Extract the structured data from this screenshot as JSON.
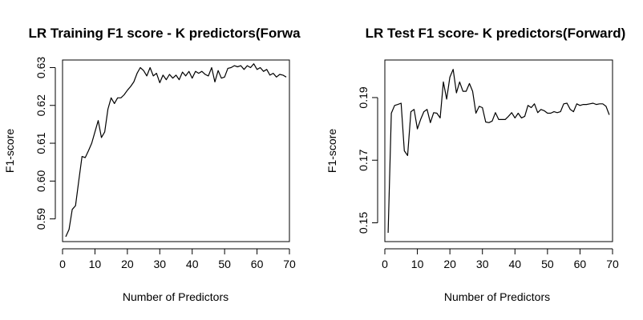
{
  "chart_data": [
    {
      "type": "line",
      "title": "LR Training F1 score - K predictors(Forwa",
      "xlabel": "Number of Predictors",
      "ylabel": "F1-score",
      "xlim": [
        0,
        70
      ],
      "ylim": [
        0.584,
        0.632
      ],
      "xticks": [
        0,
        10,
        20,
        30,
        40,
        50,
        60,
        70
      ],
      "yticks": [
        0.59,
        0.6,
        0.61,
        0.62,
        0.63
      ],
      "ytick_labels": [
        "0.59",
        "0.60",
        "0.61",
        "0.62",
        "0.63"
      ],
      "grid": false,
      "x": [
        1,
        2,
        3,
        4,
        5,
        6,
        7,
        8,
        9,
        10,
        11,
        12,
        13,
        14,
        15,
        16,
        17,
        18,
        19,
        20,
        21,
        22,
        23,
        24,
        25,
        26,
        27,
        28,
        29,
        30,
        31,
        32,
        33,
        34,
        35,
        36,
        37,
        38,
        39,
        40,
        41,
        42,
        43,
        44,
        45,
        46,
        47,
        48,
        49,
        50,
        51,
        52,
        53,
        54,
        55,
        56,
        57,
        58,
        59,
        60,
        61,
        62,
        63,
        64,
        65,
        66,
        67,
        68,
        69
      ],
      "y": [
        0.5853,
        0.5872,
        0.5925,
        0.5935,
        0.6,
        0.6065,
        0.6062,
        0.608,
        0.61,
        0.613,
        0.616,
        0.6115,
        0.613,
        0.619,
        0.622,
        0.6205,
        0.622,
        0.622,
        0.6228,
        0.624,
        0.625,
        0.6262,
        0.6285,
        0.63,
        0.6292,
        0.6278,
        0.63,
        0.6278,
        0.6285,
        0.626,
        0.628,
        0.6268,
        0.6282,
        0.6272,
        0.628,
        0.6268,
        0.6288,
        0.6278,
        0.629,
        0.6272,
        0.629,
        0.6285,
        0.629,
        0.6282,
        0.6278,
        0.63,
        0.6262,
        0.6292,
        0.6272,
        0.6275,
        0.6298,
        0.63,
        0.6305,
        0.6302,
        0.6305,
        0.6295,
        0.6305,
        0.63,
        0.631,
        0.6295,
        0.63,
        0.629,
        0.6295,
        0.628,
        0.6285,
        0.6275,
        0.6282,
        0.628,
        0.6275
      ]
    },
    {
      "type": "line",
      "title": "LR Test F1 score- K predictors(Forward)",
      "xlabel": "Number of Predictors",
      "ylabel": "F1-score",
      "xlim": [
        0,
        70
      ],
      "ylim": [
        0.144,
        0.202
      ],
      "xticks": [
        0,
        10,
        20,
        30,
        40,
        50,
        60,
        70
      ],
      "yticks": [
        0.15,
        0.17,
        0.19
      ],
      "ytick_labels": [
        "0.15",
        "0.17",
        "0.19"
      ],
      "grid": false,
      "x": [
        1,
        2,
        3,
        4,
        5,
        6,
        7,
        8,
        9,
        10,
        11,
        12,
        13,
        14,
        15,
        16,
        17,
        18,
        19,
        20,
        21,
        22,
        23,
        24,
        25,
        26,
        27,
        28,
        29,
        30,
        31,
        32,
        33,
        34,
        35,
        36,
        37,
        38,
        39,
        40,
        41,
        42,
        43,
        44,
        45,
        46,
        47,
        48,
        49,
        50,
        51,
        52,
        53,
        54,
        55,
        56,
        57,
        58,
        59,
        60,
        61,
        62,
        63,
        64,
        65,
        66,
        67,
        68,
        69
      ],
      "y": [
        0.1468,
        0.185,
        0.1875,
        0.1878,
        0.1882,
        0.173,
        0.1715,
        0.1855,
        0.1862,
        0.18,
        0.183,
        0.1855,
        0.1862,
        0.182,
        0.1852,
        0.185,
        0.1835,
        0.195,
        0.1895,
        0.1965,
        0.199,
        0.1915,
        0.195,
        0.192,
        0.192,
        0.1945,
        0.192,
        0.185,
        0.1872,
        0.1868,
        0.1822,
        0.182,
        0.1825,
        0.1852,
        0.183,
        0.183,
        0.183,
        0.184,
        0.1852,
        0.1835,
        0.185,
        0.1835,
        0.184,
        0.1875,
        0.1868,
        0.188,
        0.1852,
        0.1862,
        0.1858,
        0.185,
        0.185,
        0.1855,
        0.1852,
        0.1855,
        0.188,
        0.1882,
        0.1862,
        0.1855,
        0.188,
        0.1875,
        0.1878,
        0.1878,
        0.188,
        0.1882,
        0.1878,
        0.188,
        0.188,
        0.1872,
        0.1845
      ]
    }
  ]
}
